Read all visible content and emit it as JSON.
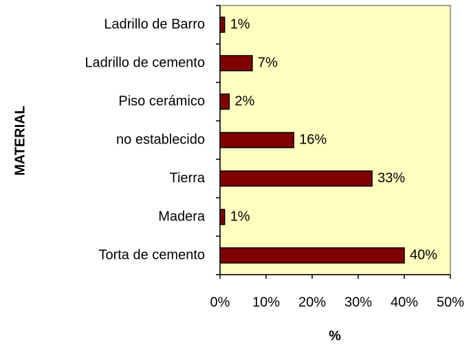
{
  "chart_data": {
    "type": "bar",
    "orientation": "horizontal",
    "x_label": "%",
    "y_label": "MATERIAL",
    "categories": [
      "Ladrillo de Barro",
      "Ladrillo de cemento",
      "Piso cerámico",
      "no establecido",
      "Tierra",
      "Madera",
      "Torta de cemento"
    ],
    "values": [
      1,
      7,
      2,
      16,
      33,
      1,
      40
    ],
    "value_labels": [
      "1%",
      "7%",
      "2%",
      "16%",
      "33%",
      "1%",
      "40%"
    ],
    "color": "#800000",
    "background": "#ffffc0",
    "xlim": [
      0,
      50
    ],
    "xticks": [
      {
        "value": 0,
        "label": "0%"
      },
      {
        "value": 10,
        "label": "10%"
      },
      {
        "value": 20,
        "label": "20%"
      },
      {
        "value": 30,
        "label": "30%"
      },
      {
        "value": 40,
        "label": "40%"
      },
      {
        "value": 50,
        "label": "50%"
      }
    ],
    "grid": false
  }
}
